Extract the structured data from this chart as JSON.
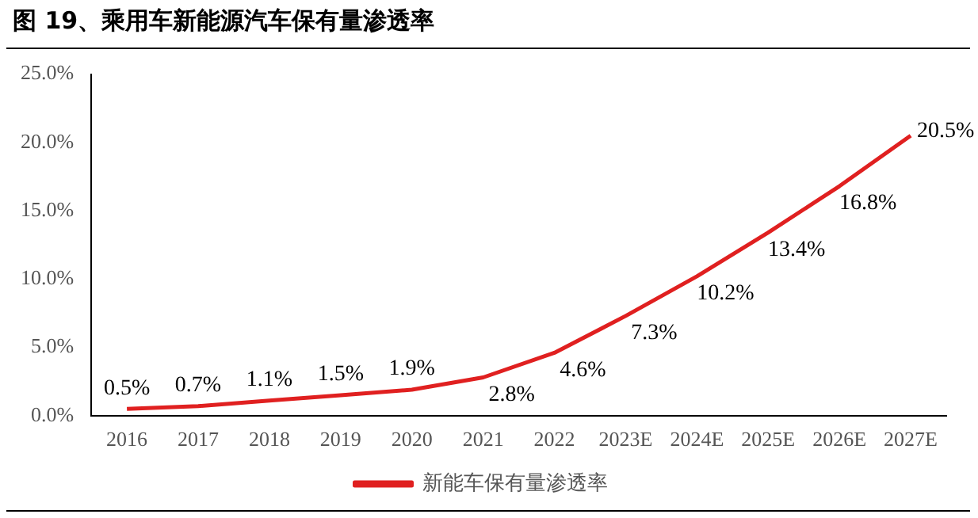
{
  "chart_data": {
    "type": "line",
    "title": "图 19、乘用车新能源汽车保有量渗透率",
    "categories": [
      "2016",
      "2017",
      "2018",
      "2019",
      "2020",
      "2021",
      "2022",
      "2023E",
      "2024E",
      "2025E",
      "2026E",
      "2027E"
    ],
    "series": [
      {
        "name": "新能车保有量渗透率",
        "color": "#e02020",
        "values": [
          0.5,
          0.7,
          1.1,
          1.5,
          1.9,
          2.8,
          4.6,
          7.3,
          10.2,
          13.4,
          16.8,
          20.5
        ],
        "value_labels": [
          "0.5%",
          "0.7%",
          "1.1%",
          "1.5%",
          "1.9%",
          "2.8%",
          "4.6%",
          "7.3%",
          "10.2%",
          "13.4%",
          "16.8%",
          "20.5%"
        ]
      }
    ],
    "ylim": [
      0,
      25
    ],
    "yticks": [
      {
        "value": 0,
        "label": "0.0%"
      },
      {
        "value": 5,
        "label": "5.0%"
      },
      {
        "value": 10,
        "label": "10.0%"
      },
      {
        "value": 15,
        "label": "15.0%"
      },
      {
        "value": 20,
        "label": "20.0%"
      },
      {
        "value": 25,
        "label": "25.0%"
      }
    ],
    "grid": false,
    "legend": "bottom",
    "marker": "none",
    "line_style": "solid"
  }
}
